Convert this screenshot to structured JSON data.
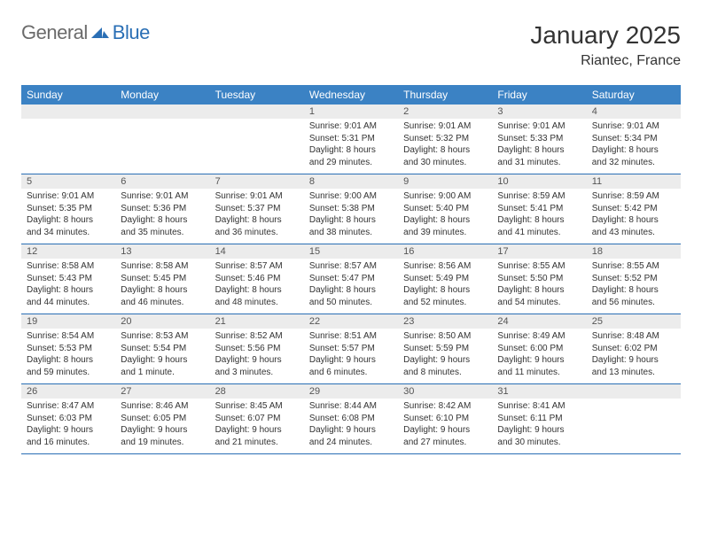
{
  "brand": {
    "word1": "General",
    "word2": "Blue",
    "word1_color": "#6b6b6b",
    "word2_color": "#2a6fb5"
  },
  "title": {
    "month": "January 2025",
    "location": "Riantec, France"
  },
  "header_bg": "#3b82c4",
  "number_strip_bg": "#ececec",
  "divider_color": "#2a6fb5",
  "day_headers": [
    "Sunday",
    "Monday",
    "Tuesday",
    "Wednesday",
    "Thursday",
    "Friday",
    "Saturday"
  ],
  "weeks": [
    {
      "numbers": [
        "",
        "",
        "",
        "1",
        "2",
        "3",
        "4"
      ],
      "cells": [
        {
          "sunrise": "",
          "sunset": "",
          "daylight": ""
        },
        {
          "sunrise": "",
          "sunset": "",
          "daylight": ""
        },
        {
          "sunrise": "",
          "sunset": "",
          "daylight": ""
        },
        {
          "sunrise": "Sunrise: 9:01 AM",
          "sunset": "Sunset: 5:31 PM",
          "daylight": "Daylight: 8 hours and 29 minutes."
        },
        {
          "sunrise": "Sunrise: 9:01 AM",
          "sunset": "Sunset: 5:32 PM",
          "daylight": "Daylight: 8 hours and 30 minutes."
        },
        {
          "sunrise": "Sunrise: 9:01 AM",
          "sunset": "Sunset: 5:33 PM",
          "daylight": "Daylight: 8 hours and 31 minutes."
        },
        {
          "sunrise": "Sunrise: 9:01 AM",
          "sunset": "Sunset: 5:34 PM",
          "daylight": "Daylight: 8 hours and 32 minutes."
        }
      ]
    },
    {
      "numbers": [
        "5",
        "6",
        "7",
        "8",
        "9",
        "10",
        "11"
      ],
      "cells": [
        {
          "sunrise": "Sunrise: 9:01 AM",
          "sunset": "Sunset: 5:35 PM",
          "daylight": "Daylight: 8 hours and 34 minutes."
        },
        {
          "sunrise": "Sunrise: 9:01 AM",
          "sunset": "Sunset: 5:36 PM",
          "daylight": "Daylight: 8 hours and 35 minutes."
        },
        {
          "sunrise": "Sunrise: 9:01 AM",
          "sunset": "Sunset: 5:37 PM",
          "daylight": "Daylight: 8 hours and 36 minutes."
        },
        {
          "sunrise": "Sunrise: 9:00 AM",
          "sunset": "Sunset: 5:38 PM",
          "daylight": "Daylight: 8 hours and 38 minutes."
        },
        {
          "sunrise": "Sunrise: 9:00 AM",
          "sunset": "Sunset: 5:40 PM",
          "daylight": "Daylight: 8 hours and 39 minutes."
        },
        {
          "sunrise": "Sunrise: 8:59 AM",
          "sunset": "Sunset: 5:41 PM",
          "daylight": "Daylight: 8 hours and 41 minutes."
        },
        {
          "sunrise": "Sunrise: 8:59 AM",
          "sunset": "Sunset: 5:42 PM",
          "daylight": "Daylight: 8 hours and 43 minutes."
        }
      ]
    },
    {
      "numbers": [
        "12",
        "13",
        "14",
        "15",
        "16",
        "17",
        "18"
      ],
      "cells": [
        {
          "sunrise": "Sunrise: 8:58 AM",
          "sunset": "Sunset: 5:43 PM",
          "daylight": "Daylight: 8 hours and 44 minutes."
        },
        {
          "sunrise": "Sunrise: 8:58 AM",
          "sunset": "Sunset: 5:45 PM",
          "daylight": "Daylight: 8 hours and 46 minutes."
        },
        {
          "sunrise": "Sunrise: 8:57 AM",
          "sunset": "Sunset: 5:46 PM",
          "daylight": "Daylight: 8 hours and 48 minutes."
        },
        {
          "sunrise": "Sunrise: 8:57 AM",
          "sunset": "Sunset: 5:47 PM",
          "daylight": "Daylight: 8 hours and 50 minutes."
        },
        {
          "sunrise": "Sunrise: 8:56 AM",
          "sunset": "Sunset: 5:49 PM",
          "daylight": "Daylight: 8 hours and 52 minutes."
        },
        {
          "sunrise": "Sunrise: 8:55 AM",
          "sunset": "Sunset: 5:50 PM",
          "daylight": "Daylight: 8 hours and 54 minutes."
        },
        {
          "sunrise": "Sunrise: 8:55 AM",
          "sunset": "Sunset: 5:52 PM",
          "daylight": "Daylight: 8 hours and 56 minutes."
        }
      ]
    },
    {
      "numbers": [
        "19",
        "20",
        "21",
        "22",
        "23",
        "24",
        "25"
      ],
      "cells": [
        {
          "sunrise": "Sunrise: 8:54 AM",
          "sunset": "Sunset: 5:53 PM",
          "daylight": "Daylight: 8 hours and 59 minutes."
        },
        {
          "sunrise": "Sunrise: 8:53 AM",
          "sunset": "Sunset: 5:54 PM",
          "daylight": "Daylight: 9 hours and 1 minute."
        },
        {
          "sunrise": "Sunrise: 8:52 AM",
          "sunset": "Sunset: 5:56 PM",
          "daylight": "Daylight: 9 hours and 3 minutes."
        },
        {
          "sunrise": "Sunrise: 8:51 AM",
          "sunset": "Sunset: 5:57 PM",
          "daylight": "Daylight: 9 hours and 6 minutes."
        },
        {
          "sunrise": "Sunrise: 8:50 AM",
          "sunset": "Sunset: 5:59 PM",
          "daylight": "Daylight: 9 hours and 8 minutes."
        },
        {
          "sunrise": "Sunrise: 8:49 AM",
          "sunset": "Sunset: 6:00 PM",
          "daylight": "Daylight: 9 hours and 11 minutes."
        },
        {
          "sunrise": "Sunrise: 8:48 AM",
          "sunset": "Sunset: 6:02 PM",
          "daylight": "Daylight: 9 hours and 13 minutes."
        }
      ]
    },
    {
      "numbers": [
        "26",
        "27",
        "28",
        "29",
        "30",
        "31",
        ""
      ],
      "cells": [
        {
          "sunrise": "Sunrise: 8:47 AM",
          "sunset": "Sunset: 6:03 PM",
          "daylight": "Daylight: 9 hours and 16 minutes."
        },
        {
          "sunrise": "Sunrise: 8:46 AM",
          "sunset": "Sunset: 6:05 PM",
          "daylight": "Daylight: 9 hours and 19 minutes."
        },
        {
          "sunrise": "Sunrise: 8:45 AM",
          "sunset": "Sunset: 6:07 PM",
          "daylight": "Daylight: 9 hours and 21 minutes."
        },
        {
          "sunrise": "Sunrise: 8:44 AM",
          "sunset": "Sunset: 6:08 PM",
          "daylight": "Daylight: 9 hours and 24 minutes."
        },
        {
          "sunrise": "Sunrise: 8:42 AM",
          "sunset": "Sunset: 6:10 PM",
          "daylight": "Daylight: 9 hours and 27 minutes."
        },
        {
          "sunrise": "Sunrise: 8:41 AM",
          "sunset": "Sunset: 6:11 PM",
          "daylight": "Daylight: 9 hours and 30 minutes."
        },
        {
          "sunrise": "",
          "sunset": "",
          "daylight": ""
        }
      ]
    }
  ]
}
